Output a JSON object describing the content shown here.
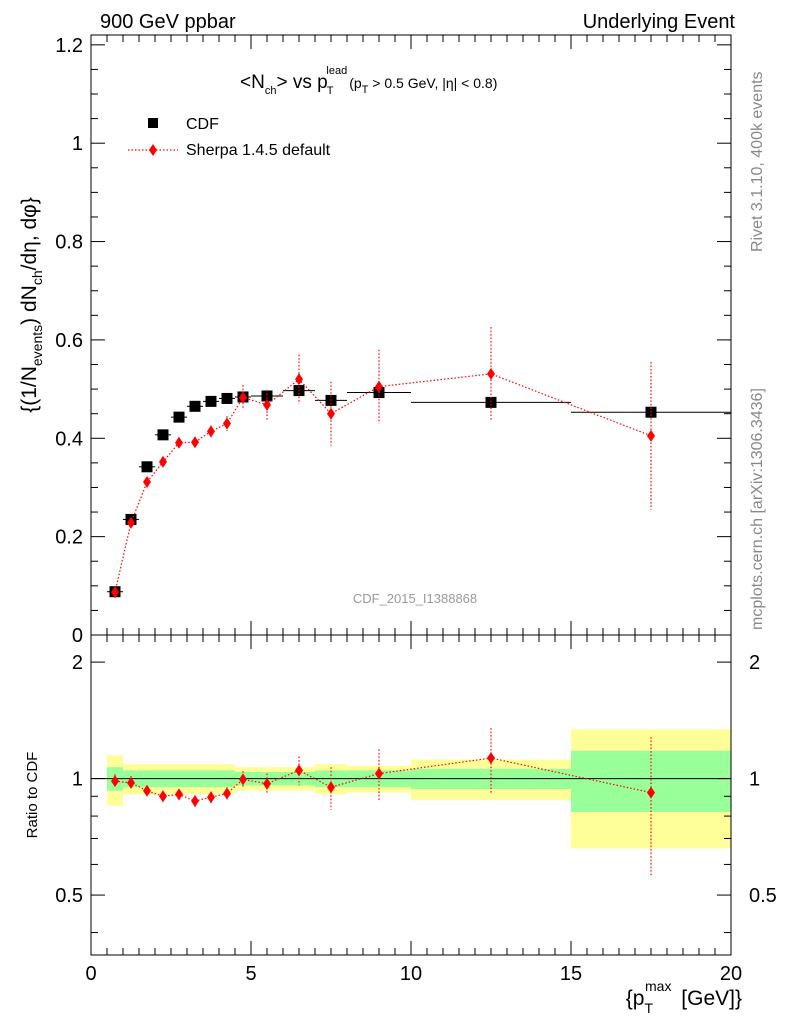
{
  "header": {
    "left": "900 GeV ppbar",
    "right": "Underlying Event"
  },
  "side": {
    "top": "Rivet 3.1.10,  400k events",
    "bottom": "mcplots.cern.ch [arXiv:1306.3436]"
  },
  "watermark": "CDF_2015_I1388868",
  "colors": {
    "cdf": "#000000",
    "sherpa": "#ff0000",
    "band_inner": "#99ff99",
    "band_outer": "#ffff99"
  },
  "chart_data": [
    {
      "type": "scatter",
      "panel": "main",
      "title": "<Nch> vs pT lead (pT > 0.5 GeV, |η| < 0.8)",
      "ylabel": "{(1/N_events) dN_ch/dη, dφ}",
      "xlim": [
        0,
        20
      ],
      "ylim": [
        0,
        1.22
      ],
      "y_ticks": [
        0,
        0.2,
        0.4,
        0.6,
        0.8,
        1,
        1.2
      ],
      "legend_position": "top-left",
      "series": [
        {
          "name": "CDF",
          "marker": "square",
          "x": [
            0.75,
            1.25,
            1.75,
            2.25,
            2.75,
            3.25,
            3.75,
            4.25,
            4.75,
            5.5,
            6.5,
            7.5,
            9,
            12.5,
            17.5
          ],
          "y": [
            0.088,
            0.235,
            0.342,
            0.407,
            0.443,
            0.465,
            0.475,
            0.481,
            0.484,
            0.486,
            0.497,
            0.477,
            0.493,
            0.473,
            0.453
          ],
          "xerr": [
            0.25,
            0.25,
            0.25,
            0.25,
            0.25,
            0.25,
            0.25,
            0.25,
            0.25,
            0.5,
            0.5,
            0.5,
            1,
            2.5,
            2.5
          ]
        },
        {
          "name": "Sherpa 1.4.5 default",
          "marker": "diamond",
          "line": "dotted",
          "x": [
            0.75,
            1.25,
            1.75,
            2.25,
            2.75,
            3.25,
            3.75,
            4.25,
            4.75,
            5.5,
            6.5,
            7.5,
            9,
            12.5,
            17.5
          ],
          "y": [
            0.087,
            0.228,
            0.311,
            0.352,
            0.391,
            0.392,
            0.414,
            0.43,
            0.483,
            0.468,
            0.52,
            0.45,
            0.505,
            0.531,
            0.405
          ],
          "yerr": [
            0.005,
            0.008,
            0.008,
            0.008,
            0.01,
            0.01,
            0.012,
            0.015,
            0.025,
            0.03,
            0.05,
            0.065,
            0.075,
            0.095,
            0.15
          ]
        }
      ]
    },
    {
      "type": "scatter",
      "panel": "ratio",
      "ylabel": "Ratio to CDF",
      "xlabel": "{pT max [GeV]}",
      "xlim": [
        0,
        20
      ],
      "ylim": [
        0.35,
        2.35
      ],
      "y_scale": "log",
      "x_ticks": [
        0,
        5,
        10,
        15,
        20
      ],
      "y_ticks": [
        0.5,
        1,
        2
      ],
      "reference_line": 1,
      "bands": [
        {
          "xlo": 0.5,
          "xhi": 1,
          "inner": 0.07,
          "outer": 0.15
        },
        {
          "xlo": 1,
          "xhi": 4.5,
          "inner": 0.05,
          "outer": 0.09
        },
        {
          "xlo": 4.5,
          "xhi": 7,
          "inner": 0.04,
          "outer": 0.07
        },
        {
          "xlo": 7,
          "xhi": 8,
          "inner": 0.05,
          "outer": 0.09
        },
        {
          "xlo": 8,
          "xhi": 10,
          "inner": 0.05,
          "outer": 0.08
        },
        {
          "xlo": 10,
          "xhi": 15,
          "inner": 0.06,
          "outer": 0.12
        },
        {
          "xlo": 15,
          "xhi": 20,
          "inner": 0.18,
          "outer": 0.34
        }
      ],
      "series": [
        {
          "name": "Sherpa 1.4.5 default",
          "marker": "diamond",
          "x": [
            0.75,
            1.25,
            1.75,
            2.25,
            2.75,
            3.25,
            3.75,
            4.25,
            4.75,
            5.5,
            6.5,
            7.5,
            9,
            12.5,
            17.5
          ],
          "y": [
            0.985,
            0.975,
            0.93,
            0.9,
            0.91,
            0.875,
            0.895,
            0.915,
            0.995,
            0.97,
            1.05,
            0.95,
            1.03,
            1.13,
            0.92
          ],
          "yerr": [
            0.04,
            0.04,
            0.03,
            0.03,
            0.03,
            0.03,
            0.03,
            0.035,
            0.05,
            0.06,
            0.09,
            0.12,
            0.16,
            0.22,
            0.36
          ]
        }
      ]
    }
  ]
}
